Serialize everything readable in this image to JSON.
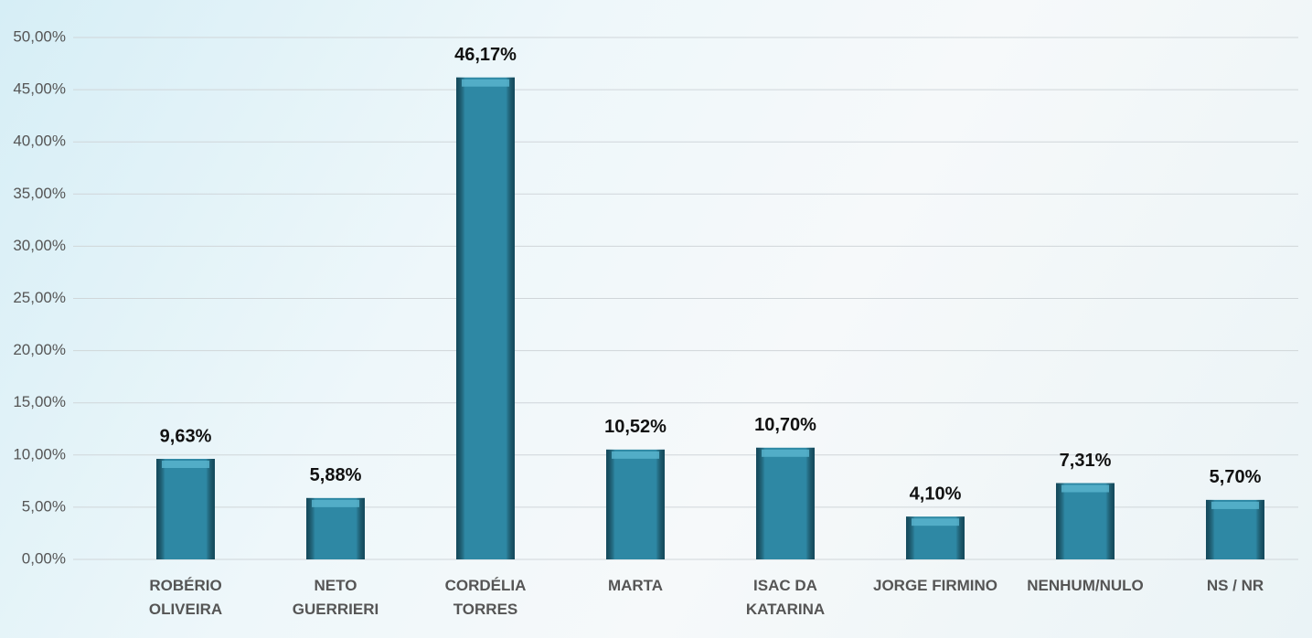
{
  "chart_data": {
    "type": "bar",
    "categories": [
      "ROBÉRIO\nOLIVEIRA",
      "NETO\nGUERRIERI",
      "CORDÉLIA\nTORRES",
      "MARTA",
      "ISAC DA\nKATARINA",
      "JORGE FIRMINO",
      "NENHUM/NULO",
      "NS / NR"
    ],
    "values": [
      9.63,
      5.88,
      46.17,
      10.52,
      10.7,
      4.1,
      7.31,
      5.7
    ],
    "value_labels": [
      "9,63%",
      "5,88%",
      "46,17%",
      "10,52%",
      "10,70%",
      "4,10%",
      "7,31%",
      "5,70%"
    ],
    "color": "#2e88a4",
    "ylim": [
      0,
      50
    ],
    "yticks": [
      {
        "value": 0,
        "label": "0,00%"
      },
      {
        "value": 5,
        "label": "5,00%"
      },
      {
        "value": 10,
        "label": "10,00%"
      },
      {
        "value": 15,
        "label": "15,00%"
      },
      {
        "value": 20,
        "label": "20,00%"
      },
      {
        "value": 25,
        "label": "25,00%"
      },
      {
        "value": 30,
        "label": "30,00%"
      },
      {
        "value": 35,
        "label": "35,00%"
      },
      {
        "value": 40,
        "label": "40,00%"
      },
      {
        "value": 45,
        "label": "45,00%"
      },
      {
        "value": 50,
        "label": "50,00%"
      }
    ],
    "grid": true
  }
}
